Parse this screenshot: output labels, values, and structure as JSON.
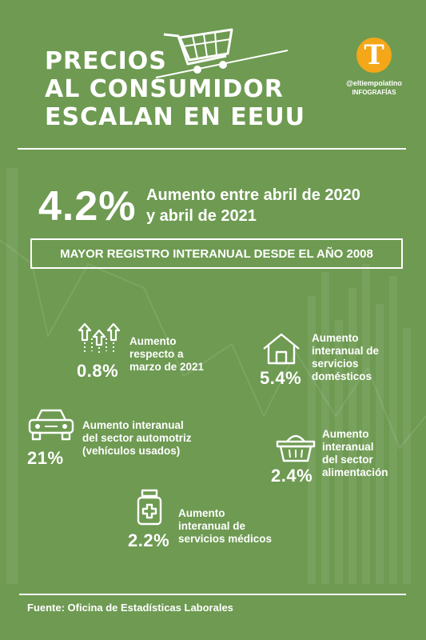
{
  "title_lines": [
    "PRECIOS",
    "AL CONSUMIDOR",
    "ESCALAN EN EEUU"
  ],
  "logo": {
    "letter": "T",
    "handle": "@eltiempolatino",
    "label": "INFOGRAFÍAS",
    "color": "#f4a718"
  },
  "headline": {
    "value": "4.2%",
    "desc_lines": [
      "Aumento entre abril de 2020",
      "y abril de 2021"
    ]
  },
  "banner": "MAYOR REGISTRO INTERANUAL DESDE EL AÑO 2008",
  "stats": {
    "monthly": {
      "value": "0.8%",
      "desc_lines": [
        "Aumento",
        "respecto a",
        "marzo de 2021"
      ],
      "icon": "up-arrows-icon"
    },
    "housing": {
      "value": "5.4%",
      "desc_lines": [
        "Aumento",
        "interanual de",
        "servicios",
        "domésticos"
      ],
      "icon": "house-icon"
    },
    "auto": {
      "value": "21%",
      "desc_lines": [
        "Aumento interanual",
        "del sector automotriz",
        "(vehículos usados)"
      ],
      "icon": "car-icon"
    },
    "food": {
      "value": "2.4%",
      "desc_lines": [
        "Aumento",
        "interanual",
        "del sector",
        "alimentación"
      ],
      "icon": "basket-icon"
    },
    "medical": {
      "value": "2.2%",
      "desc_lines": [
        "Aumento",
        "interanual de",
        "servicios médicos"
      ],
      "icon": "medicine-bottle-icon"
    }
  },
  "source": "Fuente: Oficina de Estadísticas Laborales",
  "colors": {
    "background": "#6e9a52",
    "text": "#ffffff"
  }
}
